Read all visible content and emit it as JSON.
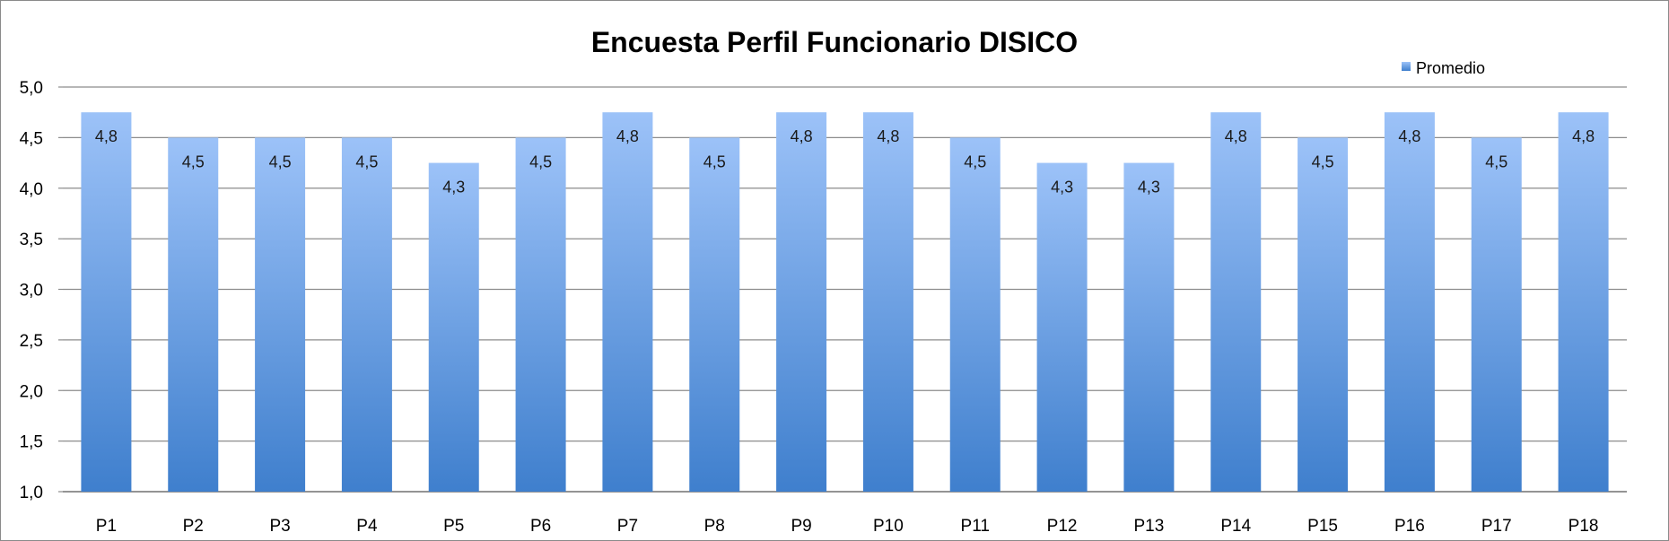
{
  "chart_data": {
    "type": "bar",
    "title": "Encuesta Perfil Funcionario DISICO",
    "xlabel": "",
    "ylabel": "",
    "ylim": [
      1.0,
      5.0
    ],
    "ytick_step": 0.5,
    "grid": true,
    "legend_position": "top-right",
    "categories": [
      "P1",
      "P2",
      "P3",
      "P4",
      "P5",
      "P6",
      "P7",
      "P8",
      "P9",
      "P10",
      "P11",
      "P12",
      "P13",
      "P14",
      "P15",
      "P16",
      "P17",
      "P18"
    ],
    "series": [
      {
        "name": "Promedio",
        "color": "#4a86d4",
        "values": [
          4.75,
          4.5,
          4.5,
          4.5,
          4.25,
          4.5,
          4.75,
          4.5,
          4.75,
          4.75,
          4.5,
          4.25,
          4.25,
          4.75,
          4.5,
          4.75,
          4.5,
          4.75
        ],
        "labels": [
          "4,8",
          "4,5",
          "4,5",
          "4,5",
          "4,3",
          "4,5",
          "4,8",
          "4,5",
          "4,8",
          "4,8",
          "4,5",
          "4,3",
          "4,3",
          "4,8",
          "4,5",
          "4,8",
          "4,5",
          "4,8"
        ]
      }
    ]
  }
}
